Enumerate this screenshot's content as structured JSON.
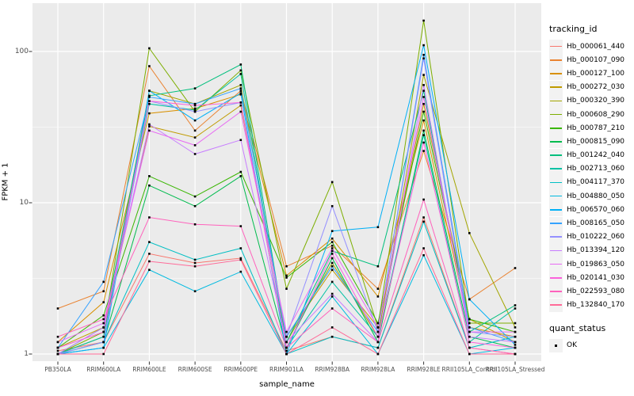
{
  "axes": {
    "x_title": "sample_name",
    "y_title": "FPKM + 1",
    "y_tick_labels": [
      "1",
      "10",
      "100"
    ]
  },
  "legend": {
    "title": "tracking_id"
  },
  "legend2": {
    "title": "quant_status",
    "items": [
      {
        "label": "OK",
        "marker": "black-square"
      }
    ]
  },
  "colors": {
    "panel_background": "#EBEBEB",
    "grid": "#FFFFFF",
    "axis_text": "#4D4D4D",
    "point": "#000000"
  },
  "chart_data": {
    "type": "line",
    "title": "",
    "xlabel": "sample_name",
    "ylabel": "FPKM + 1",
    "y_scale": "log10",
    "ylim": [
      0.9,
      210
    ],
    "y_major_ticks": [
      1,
      10,
      100
    ],
    "y_minor_ticks": [
      3.1623,
      31.623
    ],
    "grid": "on",
    "legend_position": "right",
    "point_marker": {
      "shape": "square",
      "color": "#000000",
      "meaning": "quant_status OK"
    },
    "categories": [
      "PB350LA",
      "RRIM600LA",
      "RRIM600LE",
      "RRIM600SE",
      "RRIM600PE",
      "RRIM901LA",
      "RRIM928BA",
      "RRIM928LA",
      "RRIM928LE",
      "RRII105LA_Control",
      "RRII105LA_Stressed"
    ],
    "series": [
      {
        "name": "Hb_000061_440",
        "color": "#F8766D",
        "values": [
          1.05,
          1.2,
          4.6,
          4.0,
          4.3,
          1.05,
          1.3,
          1.1,
          8.0,
          1.1,
          1.0
        ]
      },
      {
        "name": "Hb_000107_090",
        "color": "#EA8331",
        "values": [
          2.0,
          2.6,
          80,
          30,
          55,
          3.8,
          5.2,
          2.7,
          22,
          2.3,
          3.7
        ]
      },
      {
        "name": "Hb_000127_100",
        "color": "#D89000",
        "values": [
          1.2,
          2.2,
          39,
          42,
          52,
          3.3,
          5.8,
          2.4,
          35,
          1.5,
          1.3
        ]
      },
      {
        "name": "Hb_000272_030",
        "color": "#C09B00",
        "values": [
          1.1,
          1.5,
          32,
          27,
          44,
          1.3,
          3.6,
          1.5,
          45,
          1.7,
          1.2
        ]
      },
      {
        "name": "Hb_000320_390",
        "color": "#A3A500",
        "values": [
          1.0,
          1.3,
          55,
          45,
          60,
          1.2,
          4.0,
          1.3,
          70,
          6.3,
          1.5
        ]
      },
      {
        "name": "Hb_000608_290",
        "color": "#7CAE00",
        "values": [
          1.0,
          1.4,
          105,
          40,
          75,
          2.7,
          13.7,
          1.5,
          160,
          1.6,
          1.6
        ]
      },
      {
        "name": "Hb_000787_210",
        "color": "#39B600",
        "values": [
          1.1,
          1.8,
          15,
          11,
          16,
          3.2,
          5.5,
          1.6,
          40,
          1.7,
          1.4
        ]
      },
      {
        "name": "Hb_000815_090",
        "color": "#00BB4E",
        "values": [
          1.0,
          1.2,
          13,
          9.5,
          15,
          1.1,
          4.3,
          1.2,
          30,
          1.3,
          1.1
        ]
      },
      {
        "name": "Hb_001242_040",
        "color": "#00BF7D",
        "values": [
          1.0,
          1.5,
          51,
          57,
          82,
          1.2,
          4.8,
          3.8,
          55,
          1.4,
          2.1
        ]
      },
      {
        "name": "Hb_002713_060",
        "color": "#00C1A3",
        "values": [
          1.0,
          1.3,
          45,
          41,
          71,
          1.1,
          3.0,
          1.3,
          28,
          1.2,
          2.0
        ]
      },
      {
        "name": "Hb_004117_370",
        "color": "#00BFC4",
        "values": [
          1.0,
          1.2,
          5.5,
          4.2,
          5.0,
          1.0,
          1.3,
          1.1,
          7.5,
          1.1,
          1.3
        ]
      },
      {
        "name": "Hb_004880_050",
        "color": "#00BAE0",
        "values": [
          1.0,
          1.1,
          3.6,
          2.6,
          3.5,
          1.0,
          2.4,
          1.0,
          4.5,
          1.0,
          1.1
        ]
      },
      {
        "name": "Hb_006570_060",
        "color": "#00B0F6",
        "values": [
          1.0,
          1.1,
          55,
          35,
          53,
          1.0,
          6.5,
          6.9,
          110,
          2.3,
          1.15
        ]
      },
      {
        "name": "Hb_008165_050",
        "color": "#35A2FF",
        "values": [
          1.1,
          3.0,
          50,
          45,
          57,
          1.3,
          3.8,
          1.4,
          95,
          1.5,
          1.2
        ]
      },
      {
        "name": "Hb_010222_060",
        "color": "#9590FF",
        "values": [
          1.0,
          1.2,
          47,
          40,
          46,
          1.3,
          9.5,
          1.4,
          90,
          1.4,
          1.3
        ]
      },
      {
        "name": "Hb_013394_120",
        "color": "#C77CFF",
        "values": [
          1.0,
          1.5,
          33,
          21,
          26,
          1.2,
          2.5,
          1.2,
          60,
          1.3,
          1.2
        ]
      },
      {
        "name": "Hb_019863_050",
        "color": "#E76BF3",
        "values": [
          1.2,
          1.6,
          30,
          24,
          40,
          1.4,
          5.0,
          1.5,
          50,
          1.4,
          1.4
        ]
      },
      {
        "name": "Hb_020141_030",
        "color": "#FA62DB",
        "values": [
          1.1,
          1.4,
          47,
          44,
          46,
          1.1,
          4.6,
          1.3,
          25,
          1.2,
          1.1
        ]
      },
      {
        "name": "Hb_022593_080",
        "color": "#FF62BC",
        "values": [
          1.3,
          1.7,
          8.0,
          7.2,
          7.0,
          1.1,
          2.0,
          1.2,
          10.5,
          1.1,
          1.0
        ]
      },
      {
        "name": "Hb_132840_170",
        "color": "#FF6A98",
        "values": [
          1.0,
          1.0,
          4.1,
          3.8,
          4.2,
          1.0,
          1.5,
          1.0,
          5.0,
          1.0,
          1.0
        ]
      }
    ]
  }
}
